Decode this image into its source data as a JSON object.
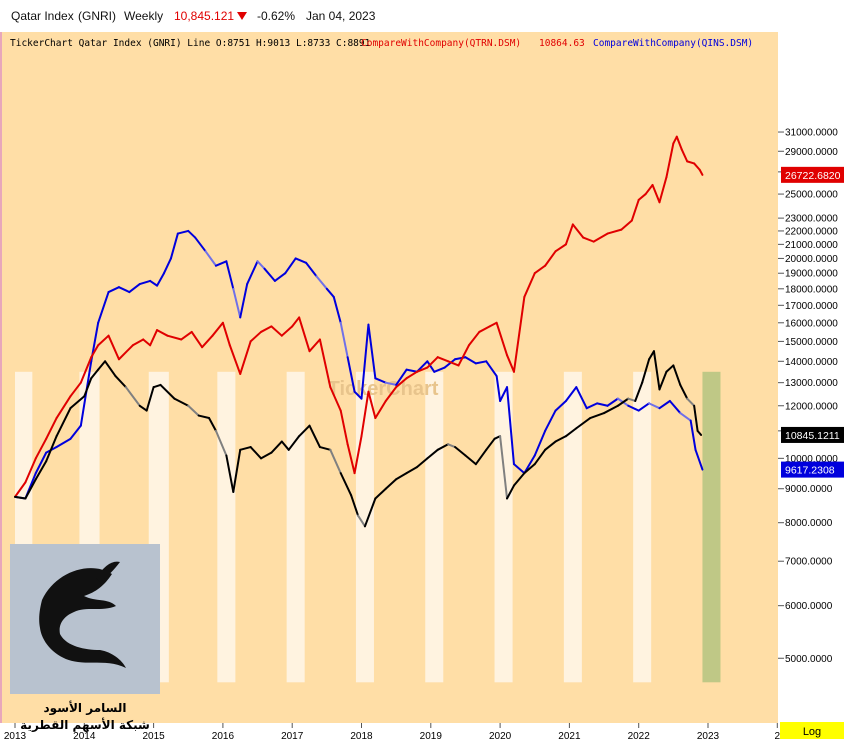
{
  "header": {
    "symbol": "Qatar Index",
    "code": "(GNRI)",
    "period": "Weekly",
    "price": "10,845.121",
    "change": "-0.62%",
    "date": "Jan 04, 2023"
  },
  "legend": {
    "main": "TickerChart Qatar Index (GNRI) Line O:8751 H:9013 L:8733 C:8891",
    "qtrn_label": "CompareWithCompany(QTRN.DSM)",
    "qtrn_value": "10864.63",
    "qins_label": "CompareWithCompany(QINS.DSM)"
  },
  "watermark": "TickerChart",
  "logo": {
    "line1": "السامر الأسود",
    "line2": "شبكة الأسهم القطرية"
  },
  "log_button": "Log",
  "colors": {
    "background": "#ffdea6",
    "band": "#fff3e0",
    "green_band": "#bfc886",
    "gnri": "#000000",
    "gnri_down": "#808080",
    "qtrn": "#e00000",
    "qins": "#0000dd",
    "qins_faded": "#7070e8"
  },
  "chart_data": {
    "type": "line",
    "scale": "log",
    "ylim": [
      4500,
      32500
    ],
    "xlim": [
      2013.0,
      2024.0
    ],
    "x_ticks": [
      "2013",
      "2014",
      "2015",
      "2016",
      "2017",
      "2018",
      "2019",
      "2020",
      "2021",
      "2022",
      "2023",
      "2"
    ],
    "y_ticks": [
      5000,
      6000,
      7000,
      8000,
      9000,
      10000,
      11000,
      12000,
      13000,
      14000,
      15000,
      16000,
      17000,
      18000,
      19000,
      20000,
      21000,
      22000,
      23000,
      25000,
      27000,
      29000,
      31000
    ],
    "y_tick_labels": [
      "5000.0000",
      "6000.0000",
      "7000.0000",
      "8000.0000",
      "9000.0000",
      "10000.0000",
      "11000.0000",
      "12000.0000",
      "13000.0000",
      "14000.0000",
      "15000.0000",
      "16000.0000",
      "17000.0000",
      "18000.0000",
      "19000.0000",
      "20000.0000",
      "21000.0000",
      "22000.0000",
      "23000.0000",
      "25000.0000",
      "27000.0000",
      "29000.0000",
      "31000.0000"
    ],
    "last_value_labels": [
      {
        "series": "QTRN.DSM",
        "value": 26722.682,
        "label": "26722.6820"
      },
      {
        "series": "GNRI",
        "value": 10845.1211,
        "label": "10845.1211"
      },
      {
        "series": "QINS.DSM",
        "value": 9617.2308,
        "label": "9617.2308"
      }
    ],
    "highlight_bands": [
      [
        2013.0,
        2013.25
      ],
      [
        2013.93,
        2014.22
      ],
      [
        2014.93,
        2015.22
      ],
      [
        2015.92,
        2016.18
      ],
      [
        2016.92,
        2017.18
      ],
      [
        2017.92,
        2018.18
      ],
      [
        2018.92,
        2019.18
      ],
      [
        2019.92,
        2020.18
      ],
      [
        2020.92,
        2021.18
      ],
      [
        2021.92,
        2022.18
      ]
    ],
    "current_band": [
      2022.92,
      2023.18
    ],
    "series": [
      {
        "name": "GNRI",
        "x": [
          2013.0,
          2013.15,
          2013.3,
          2013.45,
          2013.6,
          2013.8,
          2014.0,
          2014.1,
          2014.2,
          2014.3,
          2014.45,
          2014.6,
          2014.8,
          2014.9,
          2015.0,
          2015.1,
          2015.3,
          2015.5,
          2015.65,
          2015.8,
          2015.9,
          2016.05,
          2016.15,
          2016.25,
          2016.4,
          2016.55,
          2016.7,
          2016.85,
          2016.95,
          2017.1,
          2017.25,
          2017.4,
          2017.55,
          2017.7,
          2017.85,
          2017.95,
          2018.05,
          2018.2,
          2018.35,
          2018.5,
          2018.65,
          2018.8,
          2018.95,
          2019.1,
          2019.25,
          2019.35,
          2019.5,
          2019.65,
          2019.8,
          2019.92,
          2020.0,
          2020.1,
          2020.2,
          2020.35,
          2020.5,
          2020.65,
          2020.8,
          2020.95,
          2021.1,
          2021.3,
          2021.5,
          2021.7,
          2021.85,
          2021.95,
          2022.05,
          2022.15,
          2022.22,
          2022.3,
          2022.4,
          2022.5,
          2022.6,
          2022.7,
          2022.8,
          2022.85,
          2022.9
        ],
        "values": [
          8750,
          8700,
          9300,
          9900,
          10800,
          11900,
          12400,
          13200,
          13600,
          14000,
          13300,
          12800,
          12000,
          11800,
          12800,
          12900,
          12300,
          12000,
          11600,
          11500,
          11000,
          10100,
          8900,
          10300,
          10400,
          10000,
          10200,
          10600,
          10300,
          10800,
          11200,
          10400,
          10300,
          9500,
          8800,
          8200,
          7900,
          8700,
          9000,
          9300,
          9500,
          9700,
          10000,
          10300,
          10500,
          10400,
          10100,
          9800,
          10300,
          10700,
          10800,
          8700,
          9100,
          9500,
          9800,
          10300,
          10600,
          10800,
          11100,
          11500,
          11700,
          12000,
          12300,
          12200,
          13000,
          14100,
          14500,
          12700,
          13500,
          13800,
          12900,
          12300,
          12000,
          11000,
          10845
        ]
      },
      {
        "name": "QTRN.DSM",
        "x": [
          2013.0,
          2013.15,
          2013.3,
          2013.45,
          2013.6,
          2013.8,
          2013.95,
          2014.1,
          2014.2,
          2014.35,
          2014.5,
          2014.7,
          2014.85,
          2014.95,
          2015.05,
          2015.2,
          2015.4,
          2015.55,
          2015.7,
          2015.85,
          2016.0,
          2016.1,
          2016.25,
          2016.4,
          2016.55,
          2016.7,
          2016.85,
          2017.0,
          2017.1,
          2017.25,
          2017.4,
          2017.55,
          2017.7,
          2017.8,
          2017.9,
          2018.0,
          2018.1,
          2018.2,
          2018.35,
          2018.5,
          2018.65,
          2018.8,
          2018.95,
          2019.1,
          2019.25,
          2019.4,
          2019.55,
          2019.7,
          2019.85,
          2019.95,
          2020.1,
          2020.2,
          2020.35,
          2020.5,
          2020.65,
          2020.8,
          2020.95,
          2021.05,
          2021.2,
          2021.35,
          2021.55,
          2021.75,
          2021.9,
          2022.0,
          2022.1,
          2022.2,
          2022.3,
          2022.4,
          2022.5,
          2022.55,
          2022.62,
          2022.7,
          2022.8,
          2022.88,
          2022.92
        ],
        "values": [
          8750,
          9200,
          10000,
          10700,
          11500,
          12400,
          13000,
          14200,
          14800,
          15300,
          14100,
          14800,
          15100,
          14800,
          15600,
          15300,
          15100,
          15500,
          14700,
          15300,
          16000,
          14800,
          13400,
          15000,
          15500,
          15800,
          15300,
          15800,
          16300,
          14500,
          15100,
          12800,
          11800,
          10500,
          9500,
          10800,
          12600,
          11500,
          12200,
          12800,
          13200,
          13500,
          13700,
          14200,
          14000,
          13800,
          14800,
          15500,
          15800,
          16000,
          14300,
          13500,
          17500,
          19000,
          19500,
          20500,
          21000,
          22500,
          21500,
          21200,
          21800,
          22100,
          22800,
          24500,
          25000,
          25800,
          24300,
          26500,
          29800,
          30500,
          29200,
          28000,
          27800,
          27200,
          26722
        ]
      },
      {
        "name": "QINS.DSM",
        "x": [
          2013.0,
          2013.15,
          2013.3,
          2013.45,
          2013.6,
          2013.8,
          2013.95,
          2014.1,
          2014.2,
          2014.35,
          2014.5,
          2014.65,
          2014.8,
          2014.95,
          2015.05,
          2015.15,
          2015.25,
          2015.35,
          2015.5,
          2015.6,
          2015.75,
          2015.9,
          2016.05,
          2016.15,
          2016.25,
          2016.35,
          2016.5,
          2016.6,
          2016.75,
          2016.9,
          2017.05,
          2017.2,
          2017.35,
          2017.5,
          2017.6,
          2017.7,
          2017.8,
          2017.9,
          2018.0,
          2018.1,
          2018.2,
          2018.35,
          2018.5,
          2018.65,
          2018.8,
          2018.95,
          2019.05,
          2019.2,
          2019.35,
          2019.5,
          2019.65,
          2019.8,
          2019.95,
          2020.0,
          2020.1,
          2020.2,
          2020.35,
          2020.5,
          2020.65,
          2020.8,
          2020.95,
          2021.1,
          2021.25,
          2021.4,
          2021.55,
          2021.7,
          2021.85,
          2022.0,
          2022.15,
          2022.3,
          2022.45,
          2022.6,
          2022.75,
          2022.82,
          2022.92
        ],
        "values": [
          8750,
          8700,
          9500,
          10200,
          10400,
          10700,
          11200,
          14000,
          16000,
          17800,
          18100,
          17800,
          18300,
          18500,
          18200,
          19000,
          20000,
          21800,
          22000,
          21500,
          20500,
          19500,
          19800,
          18000,
          16300,
          18300,
          19800,
          19300,
          18500,
          19000,
          20000,
          19700,
          18800,
          18000,
          17500,
          16000,
          14200,
          12600,
          12300,
          15900,
          13200,
          13000,
          12900,
          13600,
          13500,
          14000,
          13500,
          13700,
          14100,
          14200,
          13900,
          14000,
          13300,
          12200,
          12800,
          9800,
          9500,
          10100,
          11000,
          11800,
          12200,
          12800,
          11900,
          12100,
          12000,
          12300,
          12000,
          11800,
          12100,
          11900,
          12200,
          11700,
          11400,
          10300,
          9617
        ]
      }
    ]
  }
}
